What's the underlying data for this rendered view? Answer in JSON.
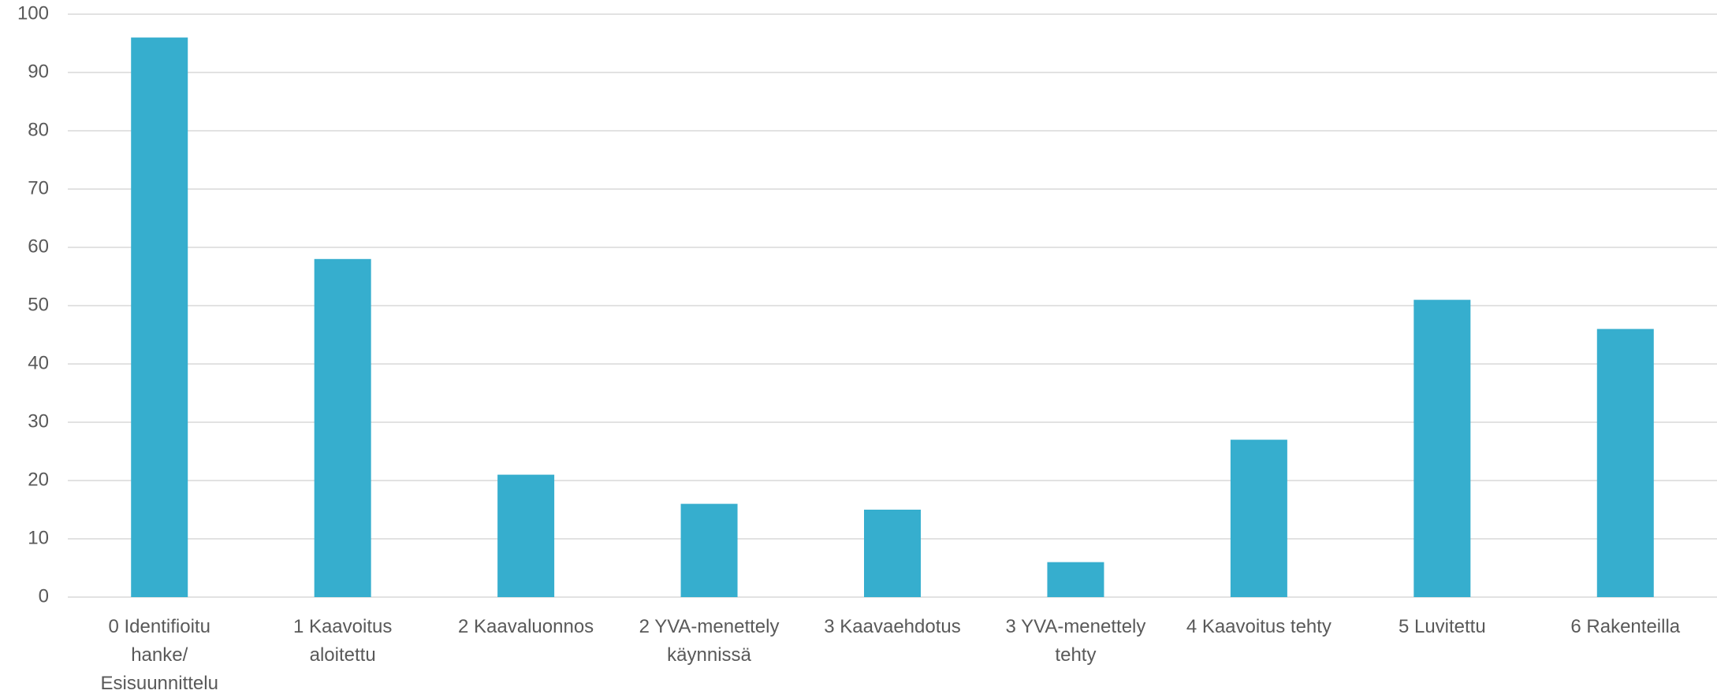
{
  "chart_data": {
    "type": "bar",
    "categories": [
      "0 Identifioitu hanke/ Esisuunnittelu",
      "1 Kaavoitus aloitettu",
      "2 Kaavaluonnos",
      "2 YVA-menettely käynnissä",
      "3 Kaavaehdotus",
      "3 YVA-menettely tehty",
      "4 Kaavoitus tehty",
      "5 Luvitettu",
      "6 Rakenteilla"
    ],
    "values": [
      96,
      58,
      21,
      16,
      15,
      6,
      27,
      51,
      46
    ],
    "color": "#36aece",
    "ylim": [
      0,
      100
    ],
    "yticks": [
      0,
      10,
      20,
      30,
      40,
      50,
      60,
      70,
      80,
      90,
      100
    ],
    "grid": true
  }
}
